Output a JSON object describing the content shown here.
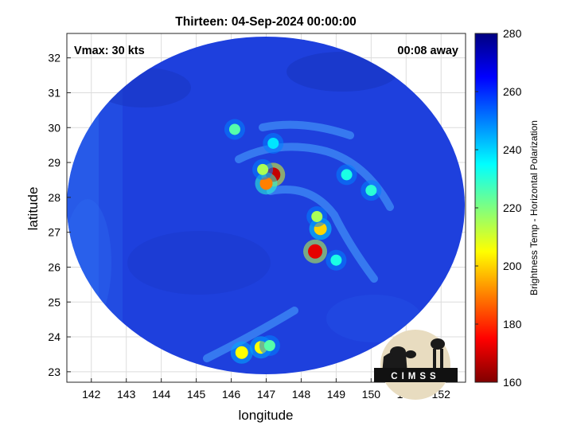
{
  "title": "Thirteen: 04-Sep-2024 00:00:00",
  "vmax_label": "Vmax: 30 kts",
  "away_label": "00:08 away",
  "xlabel": "longitude",
  "ylabel": "latitude",
  "colorbar_label": "Brightness Temp - Horizontal Polarization",
  "logo_text": "CIMSS",
  "map_data": {
    "lon_range": [
      141.3,
      152.7
    ],
    "lat_range": [
      22.7,
      32.7
    ],
    "x_ticks": [
      142,
      143,
      144,
      145,
      146,
      147,
      148,
      149,
      150,
      151,
      152
    ],
    "y_ticks": [
      23,
      24,
      25,
      26,
      27,
      28,
      29,
      30,
      31,
      32
    ],
    "colorbar_range": [
      160,
      280
    ],
    "colorbar_ticks": [
      160,
      180,
      200,
      220,
      240,
      260,
      280
    ],
    "colormap": "jet",
    "background_color": "#1d3fe0",
    "storm_center": {
      "lon": 147.1,
      "lat": 28.7
    },
    "features": [
      {
        "lon": 147.2,
        "lat": 28.65,
        "value": 168
      },
      {
        "lon": 147.0,
        "lat": 28.4,
        "value": 190
      },
      {
        "lon": 146.9,
        "lat": 28.8,
        "value": 215
      },
      {
        "lon": 148.4,
        "lat": 26.45,
        "value": 172
      },
      {
        "lon": 148.55,
        "lat": 27.1,
        "value": 200
      },
      {
        "lon": 148.45,
        "lat": 27.45,
        "value": 215
      },
      {
        "lon": 146.1,
        "lat": 29.95,
        "value": 225
      },
      {
        "lon": 146.3,
        "lat": 23.55,
        "value": 205
      },
      {
        "lon": 146.85,
        "lat": 23.7,
        "value": 205
      },
      {
        "lon": 147.1,
        "lat": 23.75,
        "value": 225
      },
      {
        "lon": 149.3,
        "lat": 28.65,
        "value": 232
      },
      {
        "lon": 150.0,
        "lat": 28.2,
        "value": 230
      },
      {
        "lon": 149.0,
        "lat": 26.2,
        "value": 232
      },
      {
        "lon": 147.2,
        "lat": 29.55,
        "value": 238
      }
    ]
  }
}
